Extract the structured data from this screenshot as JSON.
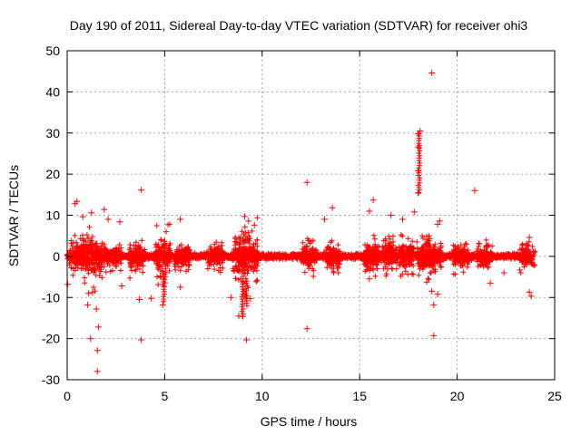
{
  "chart_data": {
    "type": "scatter",
    "title": "Day 190 of 2011, Sidereal Day-to-day VTEC variation (SDTVAR) for receiver ohi3",
    "xlabel": "GPS time / hours",
    "ylabel": "SDTVAR / TECUs",
    "xlim": [
      0,
      25
    ],
    "ylim": [
      -30,
      50
    ],
    "xticks": [
      0,
      5,
      10,
      15,
      20,
      25
    ],
    "yticks": [
      -30,
      -20,
      -10,
      0,
      10,
      20,
      30,
      40,
      50
    ],
    "xtick_labels": [
      "0",
      "5",
      "10",
      "15",
      "20",
      "25"
    ],
    "ytick_labels": [
      "-30",
      "-20",
      "-10",
      "0",
      "10",
      "20",
      "30",
      "40",
      "50"
    ],
    "grid": true,
    "marker": "+",
    "series_color": "#ff0000",
    "series": [
      {
        "name": "SDTVAR",
        "band": {
          "x_range": [
            0,
            23.8
          ],
          "core_half_width": 1.2
        },
        "bursts": [
          {
            "x": 0.5,
            "spread": 4
          },
          {
            "x": 1.1,
            "spread": 6
          },
          {
            "x": 1.6,
            "spread": 4
          },
          {
            "x": 2.4,
            "spread": 3
          },
          {
            "x": 3.6,
            "spread": 4
          },
          {
            "x": 4.9,
            "spread": 6
          },
          {
            "x": 5.9,
            "spread": 3
          },
          {
            "x": 7.6,
            "spread": 3
          },
          {
            "x": 8.9,
            "spread": 7
          },
          {
            "x": 9.4,
            "spread": 6
          },
          {
            "x": 12.4,
            "spread": 4
          },
          {
            "x": 13.6,
            "spread": 3
          },
          {
            "x": 15.6,
            "spread": 4
          },
          {
            "x": 16.5,
            "spread": 4
          },
          {
            "x": 17.4,
            "spread": 4
          },
          {
            "x": 18.3,
            "spread": 5
          },
          {
            "x": 18.8,
            "spread": 4
          },
          {
            "x": 20.2,
            "spread": 3
          },
          {
            "x": 21.4,
            "spread": 3
          },
          {
            "x": 23.6,
            "spread": 3
          }
        ],
        "outliers": [
          {
            "x": 0.03,
            "y": -6.8
          },
          {
            "x": 0.4,
            "y": 12.8
          },
          {
            "x": 0.5,
            "y": 13.4
          },
          {
            "x": 0.8,
            "y": 9.6
          },
          {
            "x": 1.05,
            "y": -11.8
          },
          {
            "x": 1.1,
            "y": -9.0
          },
          {
            "x": 1.2,
            "y": -20.0
          },
          {
            "x": 1.25,
            "y": 10.6
          },
          {
            "x": 1.3,
            "y": -8.8
          },
          {
            "x": 1.55,
            "y": -22.9
          },
          {
            "x": 1.55,
            "y": -28.0
          },
          {
            "x": 1.6,
            "y": -17.2
          },
          {
            "x": 1.5,
            "y": -12.8
          },
          {
            "x": 1.9,
            "y": 11.4
          },
          {
            "x": 2.1,
            "y": 9.0
          },
          {
            "x": 2.7,
            "y": 8.4
          },
          {
            "x": 2.8,
            "y": -7.2
          },
          {
            "x": 3.8,
            "y": 16.1
          },
          {
            "x": 3.8,
            "y": -20.3
          },
          {
            "x": 3.7,
            "y": -10.5
          },
          {
            "x": 4.3,
            "y": -10.2
          },
          {
            "x": 4.9,
            "y": -11.8
          },
          {
            "x": 5.8,
            "y": 9.0
          },
          {
            "x": 5.8,
            "y": -7.5
          },
          {
            "x": 8.4,
            "y": -10.0
          },
          {
            "x": 8.8,
            "y": -14.5
          },
          {
            "x": 9.0,
            "y": -14.6
          },
          {
            "x": 9.2,
            "y": -20.3
          },
          {
            "x": 9.1,
            "y": 9.7
          },
          {
            "x": 9.3,
            "y": 8.6
          },
          {
            "x": 9.4,
            "y": -10.3
          },
          {
            "x": 9.6,
            "y": 7.6
          },
          {
            "x": 12.3,
            "y": 18.0
          },
          {
            "x": 12.3,
            "y": -17.6
          },
          {
            "x": 13.2,
            "y": 9.0
          },
          {
            "x": 13.6,
            "y": 11.8
          },
          {
            "x": 15.5,
            "y": 11.0
          },
          {
            "x": 15.5,
            "y": -5.5
          },
          {
            "x": 15.7,
            "y": 13.7
          },
          {
            "x": 16.6,
            "y": 10.0
          },
          {
            "x": 17.2,
            "y": 9.0
          },
          {
            "x": 17.8,
            "y": 10.8
          },
          {
            "x": 18.0,
            "y": 15.4
          },
          {
            "x": 18.0,
            "y": 20.8
          },
          {
            "x": 18.0,
            "y": 26.6
          },
          {
            "x": 18.0,
            "y": 29.8
          },
          {
            "x": 18.1,
            "y": 30.5
          },
          {
            "x": 18.7,
            "y": 44.6
          },
          {
            "x": 18.8,
            "y": -19.3
          },
          {
            "x": 18.8,
            "y": -11.8
          },
          {
            "x": 18.7,
            "y": -8.5
          },
          {
            "x": 19.0,
            "y": -9.2
          },
          {
            "x": 19.1,
            "y": 8.6
          },
          {
            "x": 19.0,
            "y": 7.8
          },
          {
            "x": 20.9,
            "y": 16.0
          },
          {
            "x": 21.7,
            "y": -6.5
          },
          {
            "x": 22.4,
            "y": -4.0
          },
          {
            "x": 23.7,
            "y": 4.6
          },
          {
            "x": 23.7,
            "y": -8.7
          },
          {
            "x": 23.8,
            "y": -9.7
          }
        ],
        "spikes": [
          {
            "x": 18.05,
            "y_from": 15.5,
            "y_to": 30.5
          },
          {
            "x": 9.0,
            "y_from": -14.6,
            "y_to": -6.0
          },
          {
            "x": 9.2,
            "y_from": -12.0,
            "y_to": -5.0
          },
          {
            "x": 4.95,
            "y_from": -11.0,
            "y_to": -4.0
          }
        ]
      }
    ]
  }
}
